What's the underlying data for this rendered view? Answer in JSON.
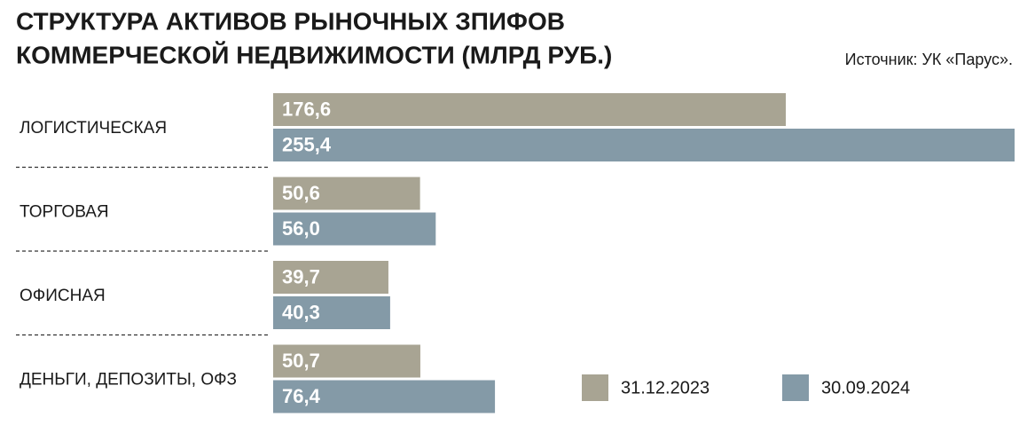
{
  "chart_data": {
    "type": "bar",
    "orientation": "horizontal",
    "title": [
      "СТРУКТУРА АКТИВОВ РЫНОЧНЫХ ЗПИФОВ",
      "КОММЕРЧЕСКОЙ НЕДВИЖИМОСТИ (МЛРД РУБ.)"
    ],
    "source": "Источник: УК «Парус».",
    "categories": [
      "ЛОГИСТИЧЕСКАЯ",
      "ТОРГОВАЯ",
      "ОФИСНАЯ",
      "ДЕНЬГИ, ДЕПОЗИТЫ, ОФЗ"
    ],
    "series": [
      {
        "name": "31.12.2023",
        "color": "#a8a493",
        "values": [
          176.6,
          50.6,
          39.7,
          50.7
        ],
        "value_labels": [
          "176,6",
          "50,6",
          "39,7",
          "50,7"
        ]
      },
      {
        "name": "30.09.2024",
        "color": "#849aa7",
        "values": [
          255.4,
          56.0,
          40.3,
          76.4
        ],
        "value_labels": [
          "255,4",
          "56,0",
          "40,3",
          "76,4"
        ]
      }
    ]
  }
}
